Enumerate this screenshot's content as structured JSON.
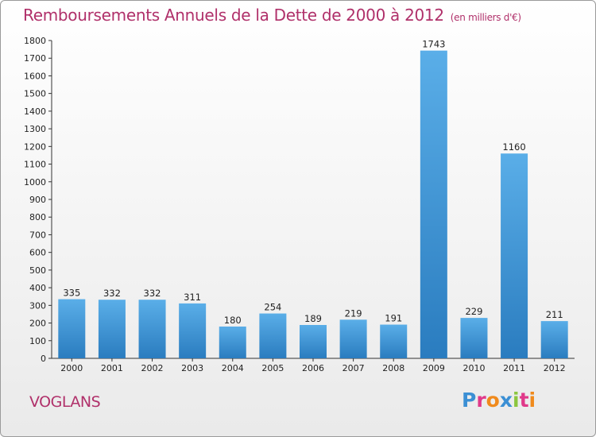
{
  "header": {
    "title": "Remboursements Annuels de la Dette de 2000 à 2012",
    "subtitle": "(en milliers d'€)"
  },
  "footer": {
    "commune": "VOGLANS",
    "brand": "Proxiti"
  },
  "colors": {
    "title": "#b0306a",
    "bar_light": "#5aaee8",
    "bar_dark": "#2a7cbf",
    "brand": [
      "#3b8fd4",
      "#e0398a",
      "#f08a1c",
      "#3b8fd4",
      "#8cc63f",
      "#e0398a",
      "#f08a1c"
    ]
  },
  "chart_data": {
    "type": "bar",
    "title": "Remboursements Annuels de la Dette de 2000 à 2012",
    "xlabel": "",
    "ylabel": "",
    "categories": [
      "2000",
      "2001",
      "2002",
      "2003",
      "2004",
      "2005",
      "2006",
      "2007",
      "2008",
      "2009",
      "2010",
      "2011",
      "2012"
    ],
    "values": [
      335,
      332,
      332,
      311,
      180,
      254,
      189,
      219,
      191,
      1743,
      229,
      1160,
      211
    ],
    "ylim": [
      0,
      1800
    ],
    "yticks": [
      0,
      100,
      200,
      300,
      400,
      500,
      600,
      700,
      800,
      900,
      1000,
      1100,
      1200,
      1300,
      1400,
      1500,
      1600,
      1700,
      1800
    ],
    "grid": false,
    "data_labels": true
  }
}
